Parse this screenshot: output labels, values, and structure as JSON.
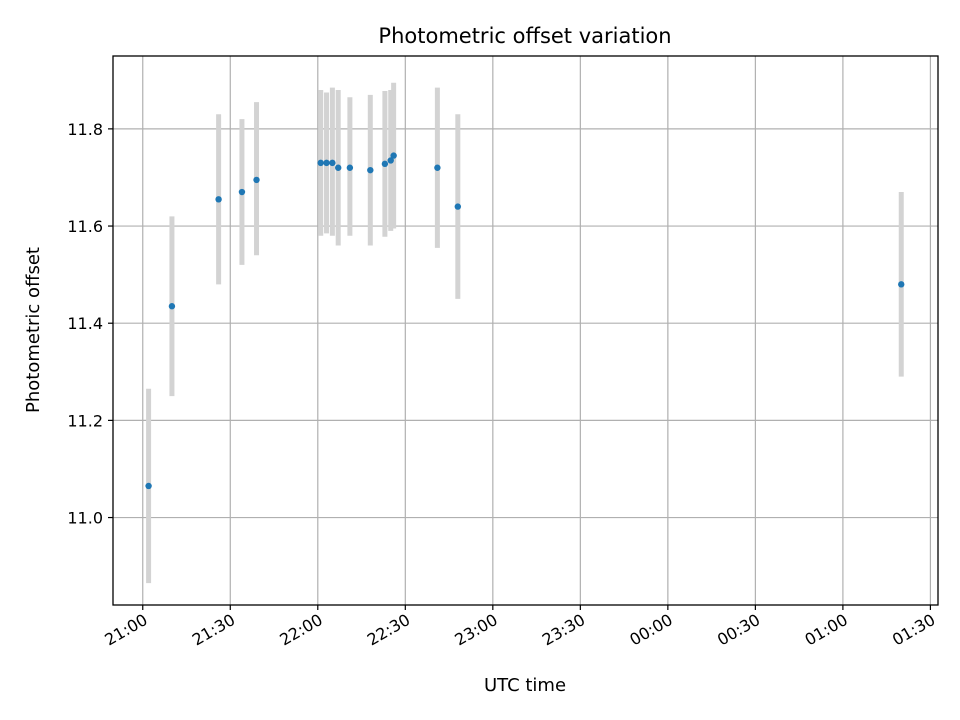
{
  "chart_data": {
    "type": "scatter",
    "title": "Photometric offset variation",
    "xlabel": "UTC time",
    "ylabel": "Photometric offset",
    "x_ticks": [
      "21:00",
      "21:30",
      "22:00",
      "22:30",
      "23:00",
      "23:30",
      "00:00",
      "00:30",
      "01:00",
      "01:30"
    ],
    "x_tick_minutes": [
      0,
      30,
      60,
      90,
      120,
      150,
      180,
      210,
      240,
      270
    ],
    "xlim_minutes": [
      -10.2,
      272.6
    ],
    "y_ticks": [
      11.0,
      11.2,
      11.4,
      11.6,
      11.8
    ],
    "ylim": [
      10.82,
      11.95
    ],
    "grid": true,
    "point_color": "#1f77b4",
    "errorbar_color": "#d3d3d3",
    "series": [
      {
        "points": [
          {
            "t": 2,
            "y": 11.065,
            "lo": 10.865,
            "hi": 11.265
          },
          {
            "t": 10,
            "y": 11.435,
            "lo": 11.25,
            "hi": 11.62
          },
          {
            "t": 26,
            "y": 11.655,
            "lo": 11.48,
            "hi": 11.83
          },
          {
            "t": 34,
            "y": 11.67,
            "lo": 11.52,
            "hi": 11.82
          },
          {
            "t": 39,
            "y": 11.695,
            "lo": 11.54,
            "hi": 11.855
          },
          {
            "t": 61,
            "y": 11.73,
            "lo": 11.58,
            "hi": 11.88
          },
          {
            "t": 63,
            "y": 11.73,
            "lo": 11.585,
            "hi": 11.875
          },
          {
            "t": 65,
            "y": 11.73,
            "lo": 11.58,
            "hi": 11.885
          },
          {
            "t": 67,
            "y": 11.72,
            "lo": 11.56,
            "hi": 11.88
          },
          {
            "t": 71,
            "y": 11.72,
            "lo": 11.58,
            "hi": 11.865
          },
          {
            "t": 78,
            "y": 11.715,
            "lo": 11.56,
            "hi": 11.87
          },
          {
            "t": 83,
            "y": 11.728,
            "lo": 11.578,
            "hi": 11.878
          },
          {
            "t": 85,
            "y": 11.735,
            "lo": 11.59,
            "hi": 11.88
          },
          {
            "t": 86,
            "y": 11.745,
            "lo": 11.595,
            "hi": 11.895
          },
          {
            "t": 101,
            "y": 11.72,
            "lo": 11.555,
            "hi": 11.885
          },
          {
            "t": 108,
            "y": 11.64,
            "lo": 11.45,
            "hi": 11.83
          },
          {
            "t": 260,
            "y": 11.48,
            "lo": 11.29,
            "hi": 11.67
          }
        ]
      }
    ]
  }
}
